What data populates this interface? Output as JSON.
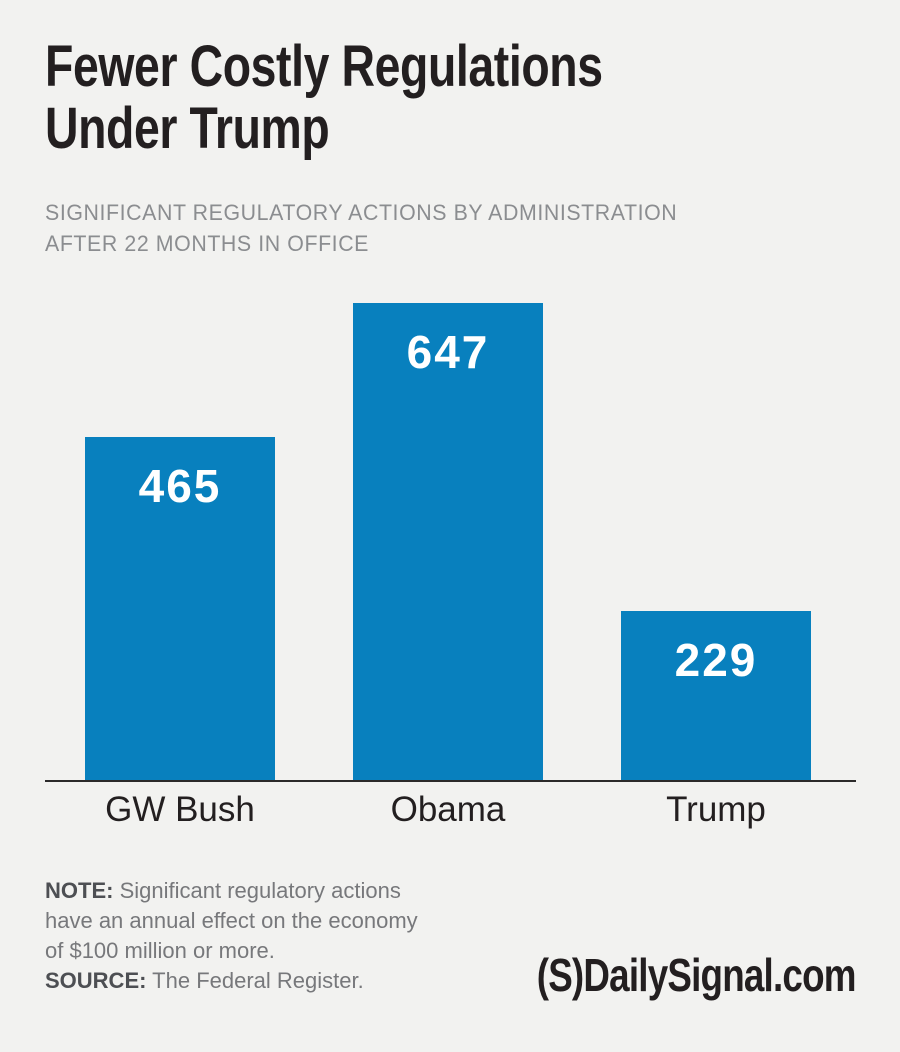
{
  "page": {
    "background_color": "#F2F2F0"
  },
  "header": {
    "title_line1": "Fewer Costly Regulations",
    "title_line2": "Under Trump",
    "subtitle_line1": "SIGNIFICANT REGULATORY ACTIONS BY ADMINISTRATION",
    "subtitle_line2": "AFTER 22 MONTHS IN OFFICE"
  },
  "chart_data": {
    "type": "bar",
    "title": "Fewer Costly Regulations Under Trump",
    "subtitle": "Significant regulatory actions by administration after 22 months in office",
    "categories": [
      "GW Bush",
      "Obama",
      "Trump"
    ],
    "values": [
      465,
      647,
      229
    ],
    "ylim": [
      0,
      647
    ],
    "grid": false,
    "legend": false,
    "value_labels_position": "inside-top",
    "bar_color": "#0880BE",
    "value_label_color": "#FFFFFF",
    "axis_line_color": "#2B2A2A"
  },
  "footer": {
    "note_label": "NOTE:",
    "note_line1": "Significant regulatory actions",
    "note_line2": "have an annual effect on the economy",
    "note_line3": "of $100 million or more.",
    "source_label": "SOURCE:",
    "source_text": "The Federal Register.",
    "logo_mark": "(S)",
    "logo_text": "DailySignal.com"
  }
}
